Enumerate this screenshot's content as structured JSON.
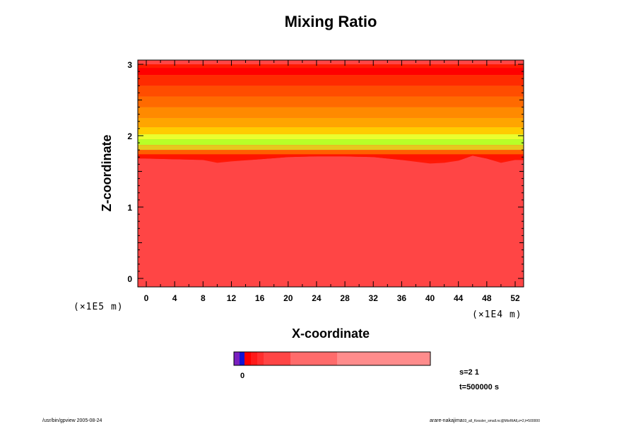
{
  "chart_data": {
    "type": "heatmap",
    "title": "Mixing Ratio",
    "xlabel": "X-coordinate",
    "ylabel": "Z-coordinate",
    "xlim": [
      0,
      52
    ],
    "ylim": [
      0,
      3
    ],
    "x_ticks": [
      "0",
      "4",
      "8",
      "12",
      "16",
      "20",
      "24",
      "28",
      "32",
      "36",
      "40",
      "44",
      "48",
      "52"
    ],
    "y_ticks": [
      "0",
      "1",
      "2",
      "3"
    ],
    "x_unit": "(×1E4 m)",
    "y_unit": "(×1E5 m)",
    "colorbar": {
      "colors": [
        "#7a1fbf",
        "#1414d4",
        "#ff0000",
        "#ff1a1a",
        "#ff2e2e",
        "#ff4545",
        "#ff6b6b",
        "#ff8c8c",
        "#ff9e9e"
      ],
      "tick_label": "0"
    },
    "layers": [
      {
        "z_top": 3.0,
        "z_bottom": 2.95,
        "color": "#ff1a00"
      },
      {
        "z_top": 2.95,
        "z_bottom": 2.85,
        "color": "#ff0000"
      },
      {
        "z_top": 2.85,
        "z_bottom": 2.7,
        "color": "#ff2b00"
      },
      {
        "z_top": 2.7,
        "z_bottom": 2.55,
        "color": "#ff4d00"
      },
      {
        "z_top": 2.55,
        "z_bottom": 2.4,
        "color": "#ff6a00"
      },
      {
        "z_top": 2.4,
        "z_bottom": 2.25,
        "color": "#ff8a00"
      },
      {
        "z_top": 2.25,
        "z_bottom": 2.12,
        "color": "#ffa500"
      },
      {
        "z_top": 2.12,
        "z_bottom": 2.02,
        "color": "#ffcc00"
      },
      {
        "z_top": 2.02,
        "z_bottom": 1.95,
        "color": "#eaff2e"
      },
      {
        "z_top": 1.95,
        "z_bottom": 1.87,
        "color": "#b8ff28"
      },
      {
        "z_top": 1.87,
        "z_bottom": 1.8,
        "color": "#e6c81e"
      },
      {
        "z_top": 1.8,
        "z_bottom": 1.73,
        "color": "#ff5f00"
      },
      {
        "z_top": 1.73,
        "z_bottom": 1.66,
        "color": "#ff1400"
      }
    ],
    "base_color": "#ff4545",
    "boundary": {
      "x": [
        0,
        4,
        8,
        10,
        12,
        16,
        20,
        24,
        28,
        32,
        36,
        40,
        42,
        44,
        46,
        48,
        50,
        52
      ],
      "z": [
        1.68,
        1.67,
        1.66,
        1.62,
        1.64,
        1.67,
        1.7,
        1.71,
        1.71,
        1.7,
        1.66,
        1.61,
        1.62,
        1.65,
        1.72,
        1.68,
        1.62,
        1.66
      ]
    },
    "info": {
      "s": "s=2 1",
      "t": "t=500000 s"
    },
    "footer": {
      "left": "/usr/bin/gpview 2005-08-24",
      "right": "arare-nakajima",
      "right_sub": "03_all_Kessler_small.nc@MixRtAll,z=2,t=500000"
    }
  }
}
